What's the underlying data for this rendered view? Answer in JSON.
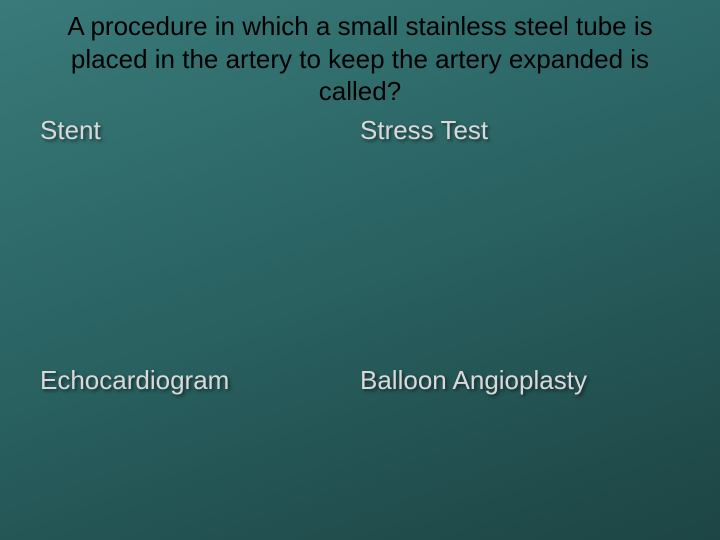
{
  "slide": {
    "background_gradient": [
      "#3a7a7a",
      "#2f6b6b",
      "#285e5e",
      "#224f4f",
      "#1d4545"
    ],
    "question": {
      "text": "A procedure in which a small stainless steel tube is placed in the  artery to keep the artery expanded is called?",
      "color": "#000000",
      "fontsize": 26,
      "align": "center"
    },
    "answers": {
      "color": "#d9d9d9",
      "fontsize": 26,
      "shadow_color": "rgba(0,0,0,0.5)",
      "options": [
        {
          "pos": "top-left",
          "text": "Stent"
        },
        {
          "pos": "top-right",
          "text": "Stress Test"
        },
        {
          "pos": "bottom-left",
          "text": "Echocardiogram"
        },
        {
          "pos": "bottom-right",
          "text": "Balloon Angioplasty"
        }
      ]
    }
  }
}
